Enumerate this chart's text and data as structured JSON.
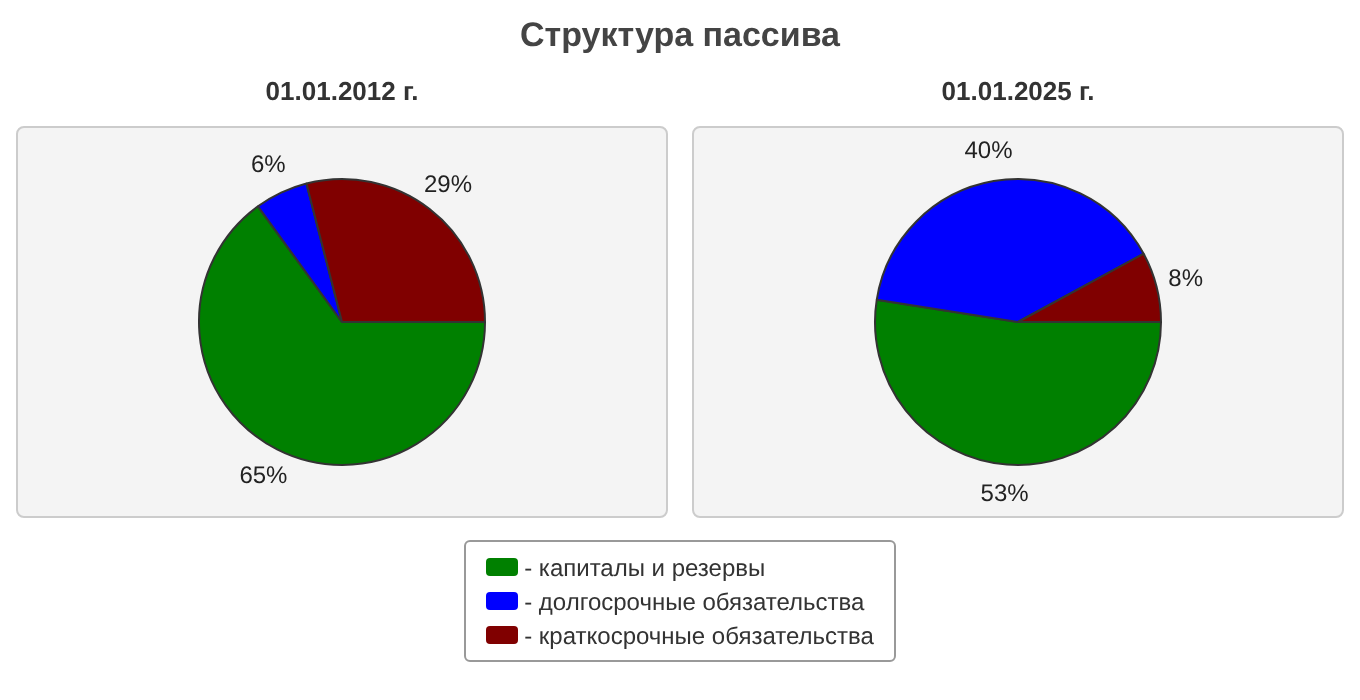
{
  "chart_data": [
    {
      "type": "pie",
      "title": "Структура пассива",
      "subtitle": "01.01.2012 г.",
      "categories": [
        "- капиталы и резервы",
        "- долгосрочные обязательства",
        "- краткосрочные обязательства"
      ],
      "values": [
        65,
        6,
        29
      ],
      "colors": [
        "#008000",
        "#0000ff",
        "#800000"
      ],
      "value_labels": [
        "65%",
        "6%",
        "29%"
      ],
      "legend": "bottom"
    },
    {
      "type": "pie",
      "subtitle": "01.01.2025 г.",
      "categories": [
        null,
        null,
        null
      ],
      "values": [
        53,
        40,
        8
      ],
      "colors": [
        "#008000",
        "#0000ff",
        "#800000"
      ],
      "value_labels": [
        "53%",
        "40%",
        "8%"
      ]
    }
  ]
}
